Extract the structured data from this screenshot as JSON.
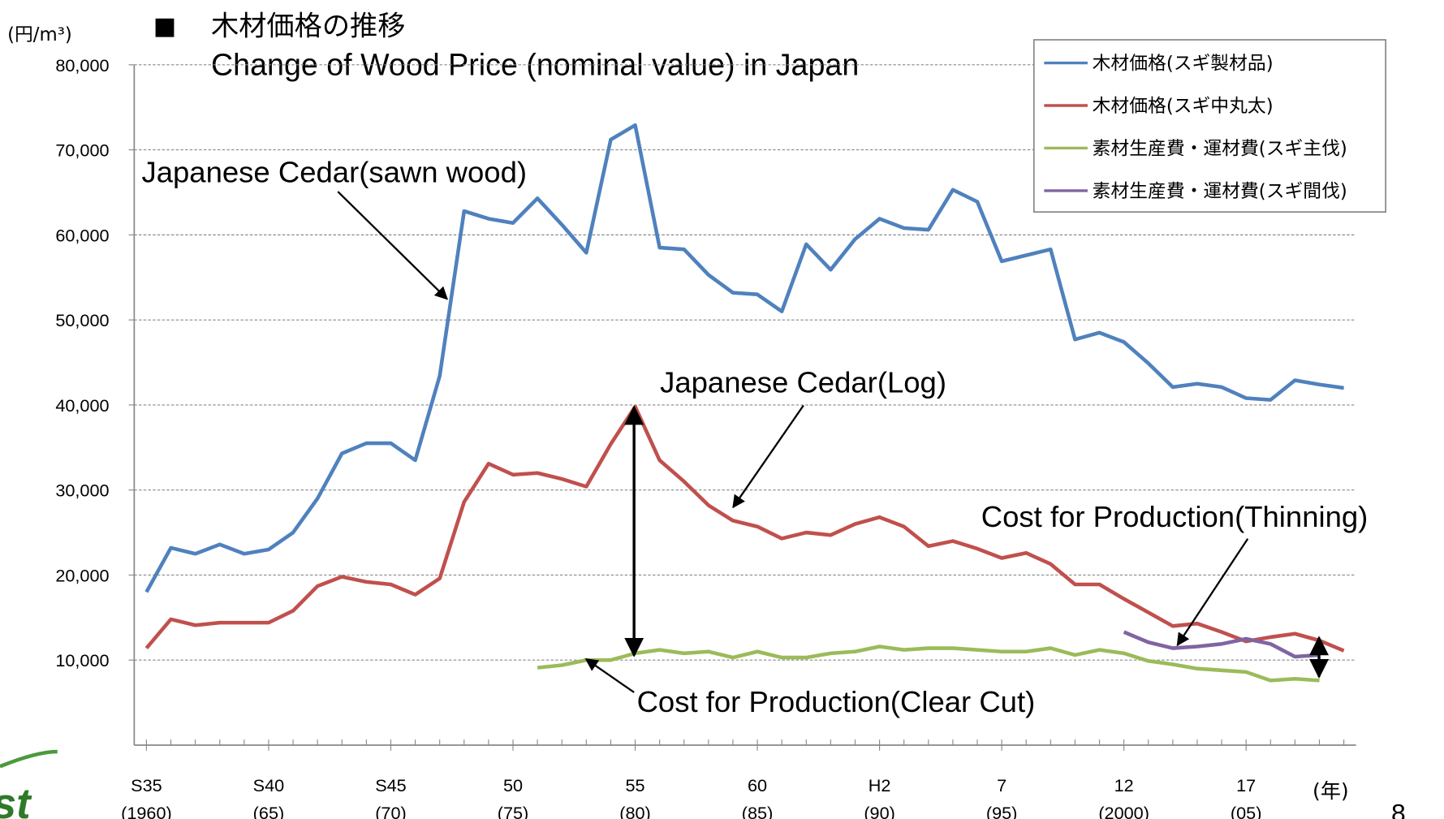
{
  "chart_data": {
    "type": "line",
    "title": "木材価格の推移",
    "subtitle": "Change of Wood Price (nominal value) in Japan",
    "y_label": "(円/m³)",
    "x_label": "(年)",
    "page_number": "8",
    "logo": "st",
    "x": [
      1960,
      1961,
      1962,
      1963,
      1964,
      1965,
      1966,
      1967,
      1968,
      1969,
      1970,
      1971,
      1972,
      1973,
      1974,
      1975,
      1976,
      1977,
      1978,
      1979,
      1980,
      1981,
      1982,
      1983,
      1984,
      1985,
      1986,
      1987,
      1988,
      1989,
      1990,
      1991,
      1992,
      1993,
      1994,
      1995,
      1996,
      1997,
      1998,
      1999,
      2000,
      2001,
      2002,
      2003,
      2004,
      2005,
      2006,
      2007,
      2008,
      2009
    ],
    "xlim": [
      1959.5,
      2009.5
    ],
    "xticks": [
      {
        "value": 1960,
        "label": [
          "S35",
          "(1960)"
        ]
      },
      {
        "value": 1965,
        "label": [
          "S40",
          "(65)"
        ]
      },
      {
        "value": 1970,
        "label": [
          "S45",
          "(70)"
        ]
      },
      {
        "value": 1975,
        "label": [
          "50",
          "(75)"
        ]
      },
      {
        "value": 1980,
        "label": [
          "55",
          "(80)"
        ]
      },
      {
        "value": 1985,
        "label": [
          "60",
          "(85)"
        ]
      },
      {
        "value": 1990,
        "label": [
          "H2",
          "(90)"
        ]
      },
      {
        "value": 1995,
        "label": [
          "7",
          "(95)"
        ]
      },
      {
        "value": 2000,
        "label": [
          "12",
          "(2000)"
        ]
      },
      {
        "value": 2005,
        "label": [
          "17",
          "(05)"
        ]
      }
    ],
    "ylim": [
      0,
      80000
    ],
    "yticks": [
      {
        "value": 10000,
        "label": "10,000"
      },
      {
        "value": 20000,
        "label": "20,000"
      },
      {
        "value": 30000,
        "label": "30,000"
      },
      {
        "value": 40000,
        "label": "40,000"
      },
      {
        "value": 50000,
        "label": "50,000"
      },
      {
        "value": 60000,
        "label": "60,000"
      },
      {
        "value": 70000,
        "label": "70,000"
      },
      {
        "value": 80000,
        "label": "80,000"
      }
    ],
    "grid": true,
    "legend": "top-right",
    "series": [
      {
        "name": "木材価格(スギ製材品)",
        "color": "#4f81bd",
        "values": [
          18000,
          23200,
          22500,
          23600,
          22500,
          23000,
          25000,
          29000,
          34300,
          35500,
          35500,
          33500,
          43400,
          62800,
          61900,
          61400,
          64300,
          61200,
          57900,
          71200,
          72900,
          58500,
          58300,
          55300,
          53200,
          53000,
          51000,
          58900,
          55900,
          59500,
          61900,
          60800,
          60600,
          65300,
          63900,
          56900,
          57600,
          58300,
          47700,
          48500,
          47400,
          44900,
          42100,
          42500,
          42100,
          40800,
          40600,
          42900,
          42400,
          42000
        ]
      },
      {
        "name": "木材価格(スギ中丸太)",
        "color": "#c0504d",
        "values": [
          11400,
          14800,
          14100,
          14400,
          14400,
          14400,
          15800,
          18700,
          19800,
          19200,
          18900,
          17700,
          19600,
          28600,
          33100,
          31800,
          32000,
          31300,
          30400,
          35400,
          39800,
          33500,
          31000,
          28200,
          26400,
          25700,
          24300,
          25000,
          24700,
          26000,
          26800,
          25700,
          23400,
          24000,
          23100,
          22000,
          22600,
          21300,
          18900,
          18900,
          17200,
          15600,
          14000,
          14300,
          13300,
          12200,
          12700,
          13100,
          12300,
          11100
        ]
      },
      {
        "name": "素材生産費・運材費(スギ主伐)",
        "color": "#9bbb59",
        "values": [
          null,
          null,
          null,
          null,
          null,
          null,
          null,
          null,
          null,
          null,
          null,
          null,
          null,
          null,
          null,
          null,
          9100,
          9400,
          10000,
          10000,
          10800,
          11200,
          10800,
          11000,
          10300,
          11000,
          10300,
          10300,
          10800,
          11000,
          11600,
          11200,
          11400,
          11400,
          11200,
          11000,
          11000,
          11400,
          10600,
          11200,
          10800,
          9900,
          9500,
          9000,
          8800,
          8600,
          7600,
          7800,
          7600,
          null
        ]
      },
      {
        "name": "素材生産費・運材費(スギ間伐)",
        "color": "#8064a2",
        "values": [
          null,
          null,
          null,
          null,
          null,
          null,
          null,
          null,
          null,
          null,
          null,
          null,
          null,
          null,
          null,
          null,
          null,
          null,
          null,
          null,
          null,
          null,
          null,
          null,
          null,
          null,
          null,
          null,
          null,
          null,
          null,
          null,
          null,
          null,
          null,
          null,
          null,
          null,
          null,
          null,
          13300,
          12100,
          11400,
          11600,
          11900,
          12500,
          11900,
          10400,
          10600,
          null
        ]
      }
    ],
    "annotations": [
      {
        "text": "Japanese Cedar(sawn wood)"
      },
      {
        "text": "Japanese Cedar(Log)"
      },
      {
        "text": "Cost for Production(Thinning)"
      },
      {
        "text": "Cost for Production(Clear Cut)"
      }
    ]
  }
}
